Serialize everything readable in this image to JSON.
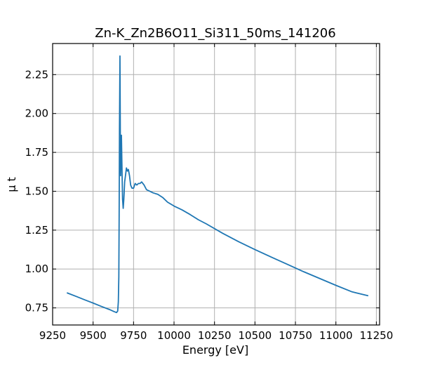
{
  "chart_data": {
    "type": "line",
    "title": "Zn-K_Zn2B6O11_Si311_50ms_141206",
    "xlabel": "Energy [eV]",
    "ylabel": "μ t",
    "xlim": [
      9250,
      11270
    ],
    "ylim": [
      0.64,
      2.45
    ],
    "x_ticks": [
      9250,
      9500,
      9750,
      10000,
      10250,
      10500,
      10750,
      11000,
      11250
    ],
    "y_ticks": [
      0.75,
      1.0,
      1.25,
      1.5,
      1.75,
      2.0,
      2.25
    ],
    "x_tick_labels": [
      "9250",
      "9500",
      "9750",
      "10000",
      "10250",
      "10500",
      "10750",
      "11000",
      "11250"
    ],
    "y_tick_labels": [
      "0.75",
      "1.00",
      "1.25",
      "1.50",
      "1.75",
      "2.00",
      "2.25"
    ],
    "grid": true,
    "line_color": "#1f77b4",
    "series": [
      {
        "x": [
          9338,
          9400,
          9450,
          9500,
          9550,
          9600,
          9630,
          9645,
          9652,
          9656,
          9659,
          9661,
          9663,
          9666,
          9668,
          9670,
          9672,
          9675,
          9678,
          9682,
          9686,
          9690,
          9695,
          9700,
          9706,
          9712,
          9718,
          9725,
          9732,
          9740,
          9750,
          9760,
          9770,
          9780,
          9790,
          9800,
          9815,
          9830,
          9850,
          9870,
          9900,
          9930,
          9960,
          10000,
          10050,
          10100,
          10150,
          10200,
          10300,
          10400,
          10500,
          10600,
          10700,
          10800,
          10900,
          11000,
          11100,
          11200
        ],
        "y": [
          0.847,
          0.822,
          0.801,
          0.781,
          0.76,
          0.74,
          0.726,
          0.72,
          0.73,
          0.79,
          0.95,
          1.35,
          1.9,
          2.37,
          1.9,
          1.6,
          1.7,
          1.86,
          1.68,
          1.45,
          1.39,
          1.45,
          1.56,
          1.6,
          1.65,
          1.63,
          1.64,
          1.6,
          1.54,
          1.52,
          1.52,
          1.55,
          1.54,
          1.55,
          1.55,
          1.56,
          1.54,
          1.51,
          1.5,
          1.49,
          1.48,
          1.46,
          1.43,
          1.405,
          1.38,
          1.35,
          1.317,
          1.29,
          1.23,
          1.175,
          1.125,
          1.077,
          1.03,
          0.983,
          0.939,
          0.895,
          0.853,
          0.828
        ]
      }
    ]
  }
}
